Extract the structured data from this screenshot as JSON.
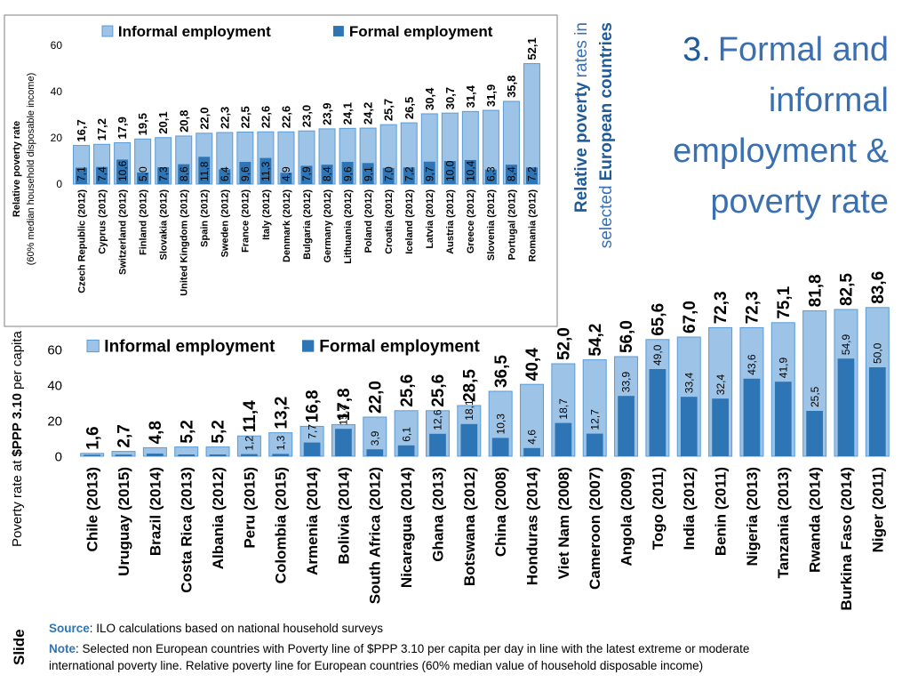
{
  "slide": {
    "title_number": "3.",
    "title_lines": [
      "Formal and",
      "informal",
      "employment &",
      "poverty rate"
    ],
    "side_note": [
      [
        "Relative poverty",
        "rates in"
      ],
      [
        "selected",
        "European countries"
      ]
    ],
    "source": {
      "label": "Source",
      "text": ": ILO calculations based on national household surveys"
    },
    "note": {
      "label": "Note",
      "lines": [
        ": Selected non European countries with Poverty line of $PPP 3.10 per capita per day in line with the latest extreme or moderate",
        "international poverty line. Relative poverty line for European countries (60% median value of household disposable income)"
      ]
    },
    "tag": "Slide"
  },
  "chart_data": [
    {
      "type": "bar",
      "ylabel": [
        "Relative poverty rate",
        "(60% median household disposable income)"
      ],
      "categories": [
        "Czech Republic (2012)",
        "Cyprus (2012)",
        "Switzerland (2012)",
        "Finland (2012)",
        "Slovakia (2012)",
        "United Kingdom (2012)",
        "Spain (2012)",
        "Sweden (2012)",
        "France (2012)",
        "Italy (2012)",
        "Denmark (2012)",
        "Bulgaria (2012)",
        "Germany (2012)",
        "Lithuania (2012)",
        "Poland (2012)",
        "Croatia (2012)",
        "Iceland (2012)",
        "Latvia (2012)",
        "Austria (2012)",
        "Greece (2012)",
        "Slovenia (2012)",
        "Portugal (2012)",
        "Romania (2012)"
      ],
      "series": [
        {
          "name": "Informal employment",
          "color": "#9dc3e6",
          "values": [
            16.7,
            17.2,
            17.9,
            19.5,
            20.1,
            20.8,
            22.0,
            22.3,
            22.5,
            22.6,
            22.6,
            23.0,
            23.9,
            24.1,
            24.2,
            25.7,
            26.5,
            30.4,
            30.7,
            31.4,
            31.9,
            35.8,
            52.1
          ],
          "value_labels": [
            "16,7",
            "17,2",
            "17,9",
            "19,5",
            "20,1",
            "20,8",
            "22,0",
            "22,3",
            "22,5",
            "22,6",
            "22,6",
            "23,0",
            "23,9",
            "24,1",
            "24,2",
            "25,7",
            "26,5",
            "30,4",
            "30,7",
            "31,4",
            "31,9",
            "35,8",
            "52,1"
          ]
        },
        {
          "name": "Formal employment",
          "color": "#2e75b6",
          "values": [
            7.1,
            7.4,
            10.6,
            5.0,
            7.3,
            8.6,
            11.8,
            6.4,
            9.6,
            11.3,
            4.9,
            7.9,
            8.4,
            9.6,
            9.1,
            7.0,
            7.2,
            9.7,
            10.0,
            10.4,
            6.3,
            8.4,
            7.2
          ],
          "value_labels": [
            "7,1",
            "7,4",
            "10,6",
            "5,0",
            "7,3",
            "8,6",
            "11,8",
            "6,4",
            "9,6",
            "11,3",
            "4,9",
            "7,9",
            "8,4",
            "9,6",
            "9,1",
            "7,0",
            "7,2",
            "9,7",
            "10,0",
            "10,4",
            "6,3",
            "8,4",
            "7,2"
          ]
        }
      ],
      "ylim": [
        0,
        60
      ],
      "yticks": [
        0,
        20,
        40,
        60
      ],
      "grid": false
    },
    {
      "type": "bar",
      "ylabel": [
        "Poverty rate at",
        "$PPP 3.10",
        "per capita"
      ],
      "categories": [
        "Chile (2013)",
        "Uruguay (2015)",
        "Brazil (2014)",
        "Costa Rica (2013)",
        "Albania (2012)",
        "Peru (2015)",
        "Colombia (2015)",
        "Armenia (2014)",
        "Bolivia (2014)",
        "South Africa (2012)",
        "Nicaragua (2014)",
        "Ghana (2013)",
        "Botswana (2012)",
        "China (2008)",
        "Honduras (2014)",
        "Viet Nam (2008)",
        "Cameroon (2007)",
        "Angola (2009)",
        "Togo (2011)",
        "India (2012)",
        "Benin (2011)",
        "Nigeria (2013)",
        "Tanzania (2013)",
        "Rwanda (2014)",
        "Burkina Faso (2014)",
        "Niger (2011)"
      ],
      "series": [
        {
          "name": "Informal employment",
          "color": "#9dc3e6",
          "values": [
            1.6,
            2.7,
            4.8,
            5.2,
            5.2,
            11.4,
            13.2,
            16.8,
            17.8,
            22.0,
            25.6,
            25.6,
            28.5,
            36.5,
            40.4,
            52.0,
            54.2,
            56.0,
            65.6,
            67.0,
            72.3,
            72.3,
            75.1,
            81.8,
            82.5,
            83.6
          ],
          "value_labels": [
            "1,6",
            "2,7",
            "4,8",
            "5,2",
            "5,2",
            "11,4",
            "13,2",
            "16,8",
            "17,8",
            "22,0",
            "25,6",
            "25,6",
            "28,5",
            "36,5",
            "40,4",
            "52,0",
            "54,2",
            "56,0",
            "65,6",
            "67,0",
            "72,3",
            "72,3",
            "75,1",
            "81,8",
            "82,5",
            "83,6"
          ]
        },
        {
          "name": "Formal employment",
          "color": "#2e75b6",
          "values": [
            0.8,
            0.9,
            1.5,
            1.0,
            1.0,
            1.2,
            1.3,
            7.7,
            15.4,
            3.9,
            6.1,
            12.6,
            18.1,
            10.3,
            4.6,
            18.7,
            12.7,
            33.9,
            49.0,
            33.4,
            32.4,
            43.6,
            41.9,
            25.5,
            54.9,
            50.0
          ],
          "value_labels": [
            null,
            null,
            null,
            null,
            null,
            "1,2",
            "1,3",
            "7,7",
            "15,4",
            "3,9",
            "6,1",
            "12,6",
            "18,1",
            "10,3",
            "4,6",
            "18,7",
            "12,7",
            "33,9",
            "49,0",
            "33,4",
            "32,4",
            "43,6",
            "41,9",
            "25,5",
            "54,9",
            "50,0"
          ]
        }
      ],
      "ylim": [
        0,
        85
      ],
      "yticks": [
        0,
        20,
        40,
        60
      ],
      "grid": false
    }
  ]
}
